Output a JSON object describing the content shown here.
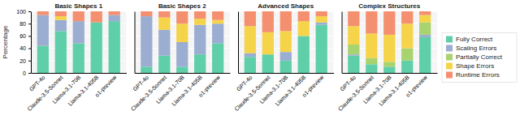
{
  "chart_data": [
    {
      "type": "bar",
      "stacked": true,
      "grid": true,
      "legend": "right",
      "title": "Basic Shapes 1",
      "ylabel": "Percentage",
      "categories": [
        "GPT-4o",
        "Claude-3.5-Sonnet",
        "Llama-3.1-70B",
        "Llama-3.1-405B",
        "o1-preview"
      ],
      "series": [
        {
          "name": "Fully Correct",
          "color": "#5ecfa8",
          "values": [
            44,
            68,
            48,
            82,
            84
          ]
        },
        {
          "name": "Scaling Errors",
          "color": "#9badd1",
          "values": [
            50,
            18,
            36,
            0,
            10
          ]
        },
        {
          "name": "Partially Correct",
          "color": "#a8d36e",
          "values": [
            0,
            0,
            0,
            0,
            0
          ]
        },
        {
          "name": "Shape Errors",
          "color": "#f5d44a",
          "values": [
            0,
            6,
            0,
            0,
            0
          ]
        },
        {
          "name": "Runtime Errors",
          "color": "#f49070",
          "values": [
            6,
            8,
            16,
            18,
            6
          ]
        }
      ],
      "ylim": [
        0,
        100
      ],
      "yticks": [
        0,
        20,
        40,
        60,
        80,
        100
      ]
    },
    {
      "type": "bar",
      "stacked": true,
      "grid": true,
      "tick_labels": "x",
      "title": "Basic Shapes 2",
      "categories": [
        "GPT-4o",
        "Claude-3.5-Sonnet",
        "Llama-3.1-70B",
        "Llama-3.1-405B",
        "o1-preview"
      ],
      "series": [
        {
          "name": "Fully Correct",
          "color": "#5ecfa8",
          "values": [
            10,
            28,
            10,
            30,
            48
          ]
        },
        {
          "name": "Scaling Errors",
          "color": "#9badd1",
          "values": [
            82,
            42,
            40,
            48,
            32
          ]
        },
        {
          "name": "Partially Correct",
          "color": "#a8d36e",
          "values": [
            0,
            0,
            0,
            0,
            0
          ]
        },
        {
          "name": "Shape Errors",
          "color": "#f5d44a",
          "values": [
            0,
            20,
            30,
            10,
            6
          ]
        },
        {
          "name": "Runtime Errors",
          "color": "#f49070",
          "values": [
            8,
            10,
            20,
            12,
            14
          ]
        }
      ],
      "ylim": [
        0,
        100
      ],
      "yticks": [
        0,
        20,
        40,
        60,
        80,
        100
      ]
    },
    {
      "type": "bar",
      "stacked": true,
      "grid": true,
      "tick_labels": "x",
      "title": "Advanced Shapes",
      "categories": [
        "GPT-4o",
        "Claude-3.5-Sonnet",
        "Llama-3.1-70B",
        "Llama-3.1-405B",
        "o1-preview"
      ],
      "series": [
        {
          "name": "Fully Correct",
          "color": "#5ecfa8",
          "values": [
            26,
            30,
            20,
            60,
            78
          ]
        },
        {
          "name": "Scaling Errors",
          "color": "#9badd1",
          "values": [
            6,
            0,
            14,
            0,
            4
          ]
        },
        {
          "name": "Partially Correct",
          "color": "#a8d36e",
          "values": [
            0,
            0,
            0,
            0,
            0
          ]
        },
        {
          "name": "Shape Errors",
          "color": "#f5d44a",
          "values": [
            44,
            36,
            34,
            24,
            10
          ]
        },
        {
          "name": "Runtime Errors",
          "color": "#f49070",
          "values": [
            24,
            34,
            32,
            16,
            8
          ]
        }
      ],
      "ylim": [
        0,
        100
      ],
      "yticks": [
        0,
        20,
        40,
        60,
        80,
        100
      ]
    },
    {
      "type": "bar",
      "stacked": true,
      "grid": true,
      "tick_labels": "x",
      "title": "Complex Structures",
      "categories": [
        "GPT-4o",
        "Claude-3.5-Sonnet",
        "Llama-3.1-70B",
        "Llama-3.1-405B",
        "o1-preview"
      ],
      "series": [
        {
          "name": "Fully Correct",
          "color": "#5ecfa8",
          "values": [
            28,
            14,
            10,
            20,
            58
          ]
        },
        {
          "name": "Scaling Errors",
          "color": "#9badd1",
          "values": [
            2,
            0,
            0,
            0,
            4
          ]
        },
        {
          "name": "Partially Correct",
          "color": "#a8d36e",
          "values": [
            16,
            10,
            8,
            20,
            20
          ]
        },
        {
          "name": "Shape Errors",
          "color": "#f5d44a",
          "values": [
            30,
            40,
            44,
            40,
            12
          ]
        },
        {
          "name": "Runtime Errors",
          "color": "#f49070",
          "values": [
            24,
            36,
            38,
            20,
            6
          ]
        }
      ],
      "ylim": [
        0,
        100
      ],
      "yticks": [
        0,
        20,
        40,
        60,
        80,
        100
      ]
    }
  ]
}
